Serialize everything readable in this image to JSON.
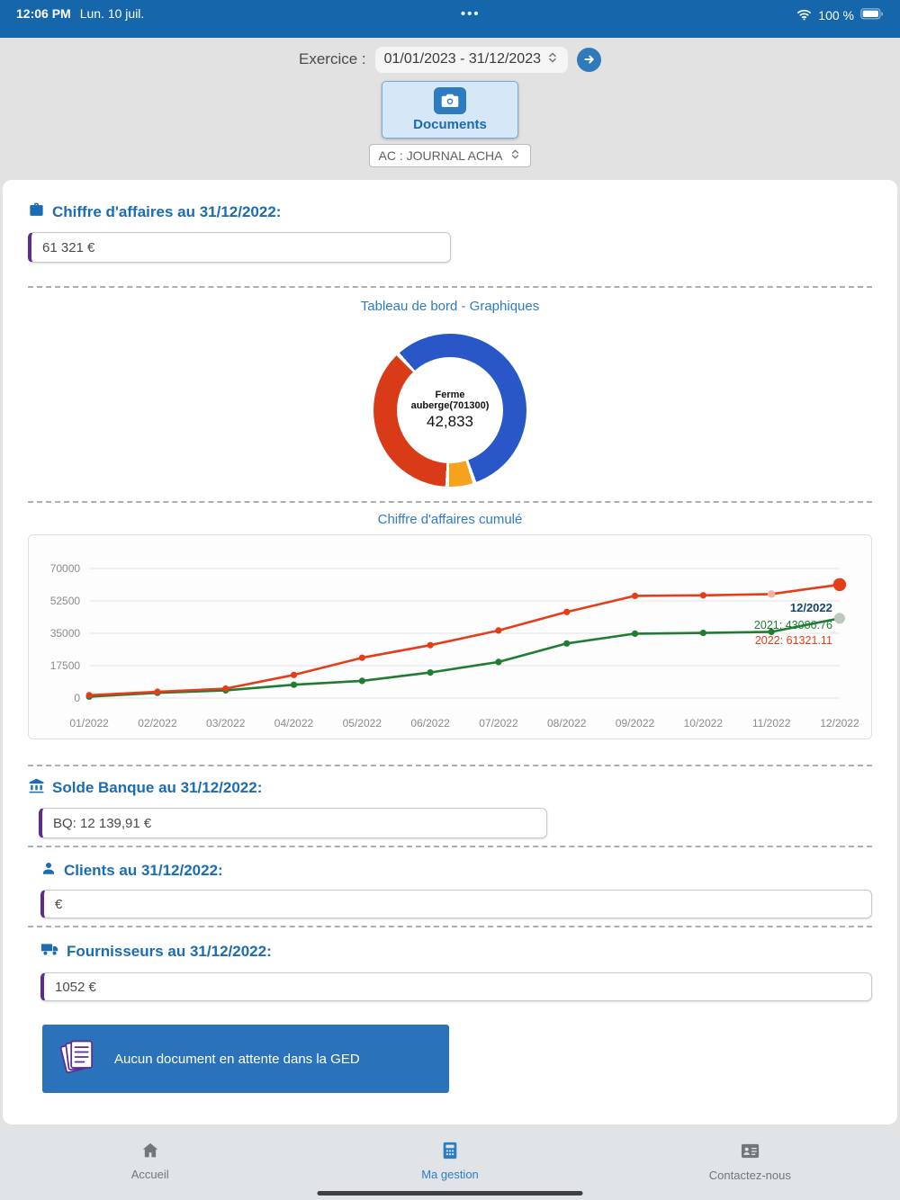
{
  "status_bar": {
    "time": "12:06 PM",
    "date": "Lun. 10 juil.",
    "dots": "•••",
    "battery_label": "100 %"
  },
  "header": {
    "exercice_label": "Exercice :",
    "exercice_value": "01/01/2023 - 31/12/2023",
    "documents_button": "Documents",
    "journal_value": "AC : JOURNAL ACHA"
  },
  "main": {
    "ca_title": "Chiffre d'affaires au 31/12/2022:",
    "ca_value": "61 321 €",
    "dashboard_title": "Tableau de bord - Graphiques",
    "line_chart_title": "Chiffre d'affaires cumulé",
    "banque_title": "Solde Banque au 31/12/2022:",
    "banque_value": "BQ: 12 139,91 €",
    "clients_title": "Clients au 31/12/2022:",
    "clients_value": "€",
    "fournisseurs_title": "Fournisseurs au 31/12/2022:",
    "fournisseurs_value": "1052 €",
    "ged_banner": "Aucun document en attente dans la GED"
  },
  "tabbar": {
    "items": [
      {
        "label": "Accueil",
        "active": false
      },
      {
        "label": "Ma gestion",
        "active": true
      },
      {
        "label": "Contactez-nous",
        "active": false
      }
    ]
  },
  "colors": {
    "status_bar_blue": "#1566aa",
    "accent_blue": "#2e7cc0",
    "title_blue": "#1a6cb4",
    "purple_accent": "#5b2d91",
    "banner_blue": "#2a73ba"
  },
  "chart_data": [
    {
      "type": "pie",
      "title": "Tableau de bord - Graphiques",
      "center_label": "Ferme auberge(701300)",
      "center_value": "42,833",
      "slices": [
        {
          "label": "segment-blue",
          "value": 44.4,
          "color": "#2a57c8"
        },
        {
          "label": "gap",
          "value": 0.8,
          "color": "#ffffff"
        },
        {
          "label": "segment-orange",
          "value": 5.0,
          "color": "#f6a21c"
        },
        {
          "label": "gap",
          "value": 0.8,
          "color": "#ffffff"
        },
        {
          "label": "segment-red",
          "value": 36.7,
          "color": "#d93a17"
        },
        {
          "label": "gap",
          "value": 0.8,
          "color": "#ffffff"
        },
        {
          "label": "segment-blue-2",
          "value": 11.5,
          "color": "#2a57c8"
        }
      ]
    },
    {
      "type": "line",
      "title": "Chiffre d'affaires cumulé",
      "x": [
        "01/2022",
        "02/2022",
        "03/2022",
        "04/2022",
        "05/2022",
        "06/2022",
        "07/2022",
        "08/2022",
        "09/2022",
        "10/2022",
        "11/2022",
        "12/2022"
      ],
      "ylim": [
        0,
        70000
      ],
      "yticks": [
        0,
        17500,
        35000,
        52500,
        70000
      ],
      "grid": true,
      "series": [
        {
          "name": "2021",
          "color": "#1f7d33",
          "fade_color": "#bcc8bc",
          "last_point": "fade",
          "values": [
            800,
            2800,
            4200,
            7200,
            9300,
            13800,
            19500,
            29500,
            34800,
            35200,
            35800,
            43086.76
          ]
        },
        {
          "name": "2022",
          "color": "#e53d17",
          "fade_color": "#f3b3a3",
          "last_point": "big",
          "fade_point_index": 10,
          "values": [
            1500,
            3400,
            5100,
            12500,
            21800,
            28600,
            36500,
            46500,
            55200,
            55500,
            56200,
            61321.11
          ]
        }
      ],
      "tooltip": {
        "title": "12/2022",
        "title_color": "#17456e",
        "items": [
          {
            "text": "2021: 43086.76",
            "color": "#1f7d33"
          },
          {
            "text": "2022: 61321.11",
            "color": "#e53d17"
          }
        ]
      }
    }
  ]
}
